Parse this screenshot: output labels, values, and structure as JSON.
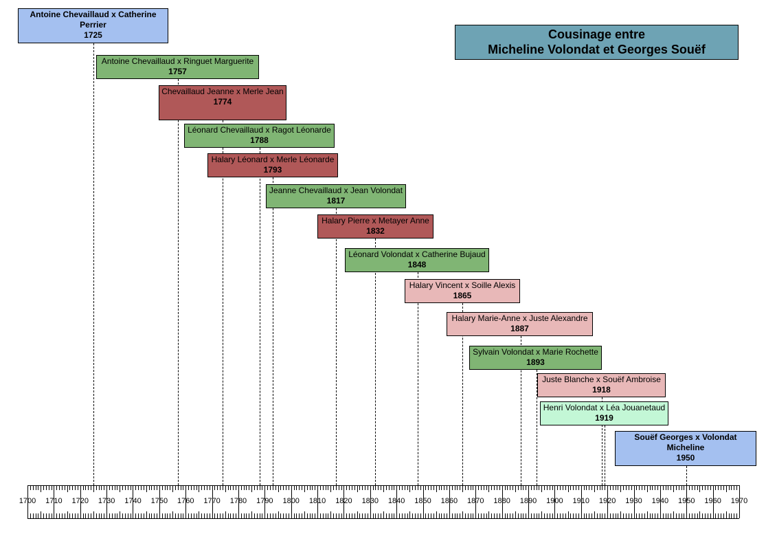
{
  "title": {
    "line1": "Cousinage entre",
    "line2": "Micheline Volondat et Georges Souëf",
    "color": "#6ea3b4"
  },
  "palette": {
    "blue": "#a4c0f0",
    "green": "#80b574",
    "dark_red": "#b05858",
    "pink": "#e8b8b8",
    "mint": "#c3f7d6"
  },
  "timeline": {
    "start": 1700,
    "end": 1970,
    "tick_labels": [
      "1700",
      "1710",
      "1720",
      "1730",
      "1740",
      "1750",
      "1760",
      "1770",
      "1780",
      "1790",
      "1800",
      "1810",
      "1820",
      "1830",
      "1840",
      "1850",
      "1860",
      "1870",
      "1880",
      "1890",
      "1900",
      "1910",
      "1920",
      "1930",
      "1940",
      "1950",
      "1960",
      "1970"
    ]
  },
  "couples": [
    {
      "names": "Antoine Chevaillaud x Catherine Perrier",
      "year": "1725",
      "color": "blue",
      "bold_names": true
    },
    {
      "names": "Antoine Chevaillaud x Ringuet Marguerite",
      "year": "1757",
      "color": "green",
      "bold_names": false
    },
    {
      "names": "Chevaillaud Jeanne x Merle Jean",
      "year": "1774",
      "color": "dark_red",
      "bold_names": false
    },
    {
      "names": "Léonard Chevaillaud x Ragot Léonarde",
      "year": "1788",
      "color": "green",
      "bold_names": false
    },
    {
      "names": "Halary Léonard x Merle Léonarde",
      "year": "1793",
      "color": "dark_red",
      "bold_names": false
    },
    {
      "names": "Jeanne Chevaillaud x Jean Volondat",
      "year": "1817",
      "color": "green",
      "bold_names": false
    },
    {
      "names": "Halary Pierre x Metayer Anne",
      "year": "1832",
      "color": "dark_red",
      "bold_names": false
    },
    {
      "names": "Léonard Volondat x Catherine Bujaud",
      "year": "1848",
      "color": "green",
      "bold_names": false
    },
    {
      "names": "Halary Vincent x Soille Alexis",
      "year": "1865",
      "color": "pink",
      "bold_names": false
    },
    {
      "names": "Halary Marie-Anne x Juste Alexandre",
      "year": "1887",
      "color": "pink",
      "bold_names": false
    },
    {
      "names": "Sylvain Volondat x Marie Rochette",
      "year": "1893",
      "color": "green",
      "bold_names": false
    },
    {
      "names": "Juste Blanche x Souëf Ambroise",
      "year": "1918",
      "color": "pink",
      "bold_names": false
    },
    {
      "names": "Henri Volondat x Léa Jouanetaud",
      "year": "1919",
      "color": "mint",
      "bold_names": false
    },
    {
      "names": "Souëf Georges x Volondat Micheline",
      "year": "1950",
      "color": "blue",
      "bold_names": true
    }
  ]
}
